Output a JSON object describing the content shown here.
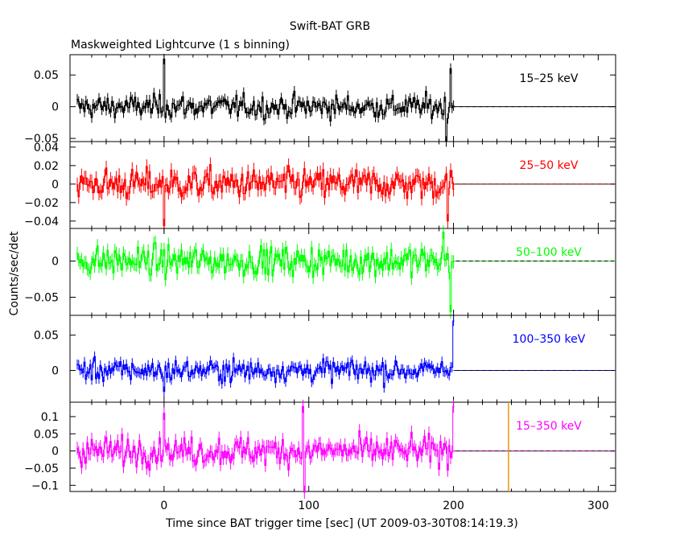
{
  "chart_data": {
    "type": "line",
    "title": "Swift-BAT GRB",
    "subtitle": "Maskweighted Lightcurve (1 s binning)",
    "xlabel": "Time since BAT trigger time [sec] (UT 2009-03-30T08:14:19.3)",
    "ylabel": "Counts/sec/det",
    "xlim": [
      -65,
      312
    ],
    "x_ticks": [
      0,
      100,
      200,
      300
    ],
    "data_range": [
      -60,
      200
    ],
    "panels": [
      {
        "band": "15–25 keV",
        "color": "#000000",
        "ylim": [
          -0.055,
          0.082
        ],
        "ytick_values": [
          -0.05,
          0,
          0.05
        ],
        "ytick_labels": [
          "−0.05",
          "0",
          "0.05"
        ],
        "noise": 0.015,
        "features": [
          {
            "t": 0,
            "v": 0.075
          },
          {
            "t": 195,
            "v": -0.055
          },
          {
            "t": 198,
            "v": 0.06
          }
        ]
      },
      {
        "band": "25–50 keV",
        "color": "#ff0000",
        "ylim": [
          -0.048,
          0.046
        ],
        "ytick_values": [
          -0.04,
          -0.02,
          0,
          0.02,
          0.04
        ],
        "ytick_labels": [
          "−0.04",
          "−0.02",
          "0",
          "0.02",
          "0.04"
        ],
        "noise": 0.014,
        "features": [
          {
            "t": 0,
            "v": -0.045
          },
          {
            "t": 196,
            "v": -0.04
          }
        ]
      },
      {
        "band": "50–100 keV",
        "color": "#00ff00",
        "ylim": [
          -0.075,
          0.045
        ],
        "ytick_values": [
          -0.05,
          0
        ],
        "ytick_labels": [
          "−0.05",
          "0"
        ],
        "noise": 0.017,
        "features": [
          {
            "t": 193,
            "v": 0.04
          },
          {
            "t": 198,
            "v": -0.07
          }
        ]
      },
      {
        "band": "100–350 keV",
        "color": "#0000ff",
        "ylim": [
          -0.045,
          0.078
        ],
        "ytick_values": [
          0,
          0.05
        ],
        "ytick_labels": [
          "0",
          "0.05"
        ],
        "noise": 0.013,
        "features": [
          {
            "t": 0,
            "v": -0.03
          },
          {
            "t": 200,
            "v": 0.07
          }
        ]
      },
      {
        "band": "15–350 keV",
        "color": "#ff00ff",
        "ylim": [
          -0.118,
          0.142
        ],
        "ytick_values": [
          -0.1,
          -0.05,
          0,
          0.05,
          0.1
        ],
        "ytick_labels": [
          "−0.1",
          "−0.05",
          "0",
          "0.05",
          "0.1"
        ],
        "noise": 0.035,
        "features": [
          {
            "t": 0,
            "v": 0.11
          },
          {
            "t": 96,
            "v": 0.13
          },
          {
            "t": 97,
            "v": -0.12
          },
          {
            "t": 200,
            "v": 0.13
          }
        ],
        "vline": {
          "t": 238,
          "color": "#e69a00"
        }
      }
    ]
  }
}
